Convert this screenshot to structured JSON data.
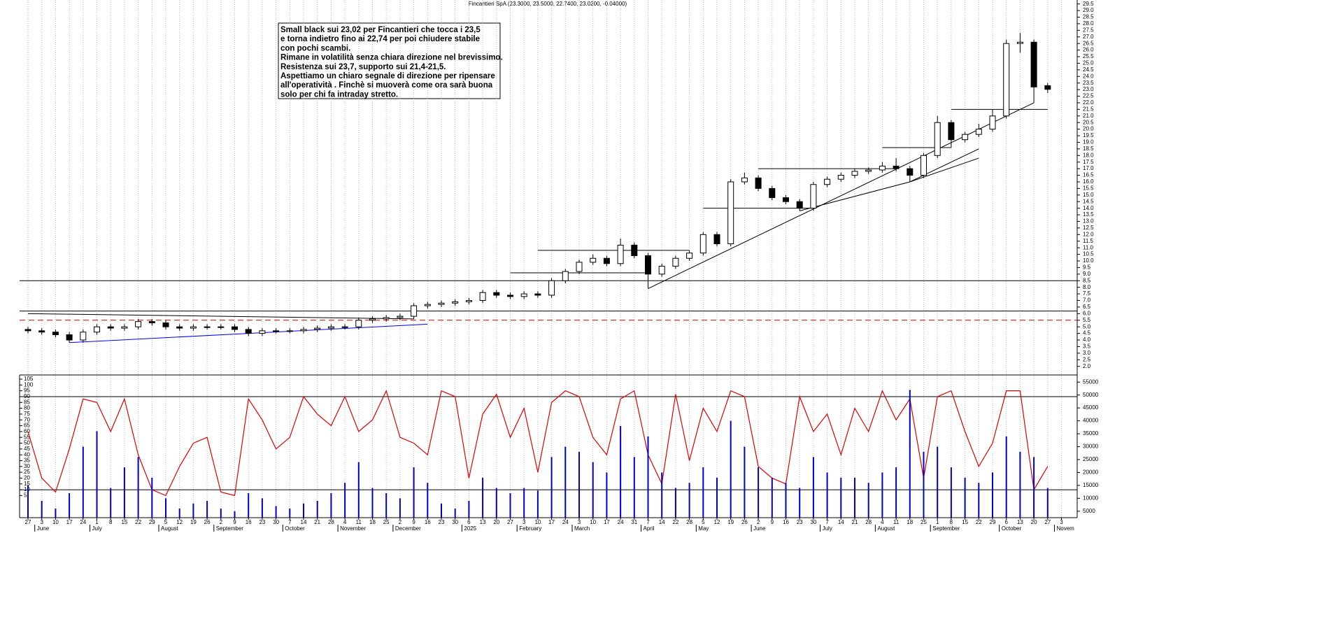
{
  "chart_data": [
    {
      "type": "candlestick",
      "title": "Fincantieri SpA (23.3000, 23.5000, 22.7400, 23.0200, -0.04000)",
      "categories": [
        "27",
        "3",
        "10",
        "17",
        "24",
        "1",
        "8",
        "15",
        "22",
        "29",
        "5",
        "12",
        "19",
        "26",
        "2",
        "9",
        "16",
        "23",
        "30",
        "7",
        "14",
        "21",
        "28",
        "4",
        "11",
        "18",
        "25",
        "2",
        "9",
        "16",
        "23",
        "30",
        "6",
        "13",
        "20",
        "27",
        "3",
        "10",
        "17",
        "24",
        "3",
        "10",
        "17",
        "24",
        "31",
        "7",
        "14",
        "22",
        "28",
        "5",
        "12",
        "19",
        "26",
        "2",
        "9",
        "16",
        "23",
        "30",
        "7",
        "14",
        "21",
        "28",
        "4",
        "11",
        "18",
        "25",
        "1",
        "8",
        "15",
        "22",
        "29",
        "6",
        "13",
        "20",
        "27",
        "3"
      ],
      "months": [
        {
          "label": "June",
          "index": 1
        },
        {
          "label": "July",
          "index": 5
        },
        {
          "label": "August",
          "index": 10
        },
        {
          "label": "September",
          "index": 14
        },
        {
          "label": "October",
          "index": 19
        },
        {
          "label": "November",
          "index": 23
        },
        {
          "label": "December",
          "index": 27
        },
        {
          "label": "2025",
          "index": 32
        },
        {
          "label": "February",
          "index": 36
        },
        {
          "label": "March",
          "index": 40
        },
        {
          "label": "April",
          "index": 45
        },
        {
          "label": "May",
          "index": 49
        },
        {
          "label": "June",
          "index": 53
        },
        {
          "label": "July",
          "index": 58
        },
        {
          "label": "August",
          "index": 62
        },
        {
          "label": "September",
          "index": 66
        },
        {
          "label": "October",
          "index": 71
        },
        {
          "label": "Novem",
          "index": 75
        }
      ],
      "open": [
        4.8,
        4.7,
        4.6,
        4.4,
        4.0,
        4.6,
        5.0,
        4.9,
        5.0,
        5.4,
        5.3,
        5.0,
        4.9,
        5.0,
        5.0,
        5.0,
        4.8,
        4.5,
        4.7,
        4.7,
        4.7,
        4.8,
        4.9,
        5.0,
        5.0,
        5.5,
        5.6,
        5.7,
        5.8,
        6.6,
        6.7,
        6.8,
        6.9,
        7.0,
        7.6,
        7.4,
        7.3,
        7.5,
        7.4,
        8.5,
        9.2,
        9.9,
        10.2,
        9.8,
        11.2,
        10.4,
        9.0,
        9.6,
        10.2,
        10.6,
        12.0,
        11.3,
        16.0,
        16.3,
        15.5,
        14.8,
        14.5,
        14.0,
        15.8,
        16.2,
        16.5,
        16.8,
        16.9,
        17.2,
        17.0,
        16.5,
        18.0,
        20.5,
        19.2,
        19.6,
        20.0,
        21.0,
        26.5,
        26.6,
        23.3,
        null
      ],
      "high": [
        5.0,
        4.9,
        4.8,
        4.6,
        4.8,
        5.2,
        5.2,
        5.2,
        5.6,
        5.6,
        5.5,
        5.2,
        5.2,
        5.2,
        5.2,
        5.2,
        5.0,
        4.9,
        4.9,
        4.9,
        5.0,
        5.1,
        5.2,
        5.2,
        5.7,
        5.8,
        5.9,
        6.0,
        6.8,
        6.9,
        7.0,
        7.1,
        7.2,
        7.8,
        7.8,
        7.6,
        7.7,
        7.7,
        8.7,
        9.4,
        10.1,
        10.5,
        10.4,
        11.7,
        11.4,
        10.6,
        9.8,
        10.4,
        10.8,
        12.2,
        12.2,
        16.2,
        16.7,
        16.5,
        15.7,
        15.0,
        14.7,
        16.0,
        16.4,
        16.7,
        17.0,
        17.1,
        17.5,
        17.8,
        17.2,
        18.2,
        21.0,
        20.7,
        19.8,
        20.4,
        21.5,
        26.8,
        27.3,
        26.8,
        23.5,
        null
      ],
      "low": [
        4.5,
        4.4,
        4.2,
        3.8,
        3.8,
        4.4,
        4.7,
        4.7,
        4.8,
        5.1,
        4.8,
        4.7,
        4.7,
        4.8,
        4.8,
        4.6,
        4.3,
        4.3,
        4.5,
        4.5,
        4.5,
        4.6,
        4.7,
        4.8,
        4.8,
        5.3,
        5.4,
        5.5,
        5.6,
        6.4,
        6.5,
        6.6,
        6.7,
        6.8,
        7.2,
        7.1,
        7.1,
        7.2,
        7.2,
        8.3,
        9.0,
        9.7,
        9.6,
        9.6,
        10.2,
        7.9,
        8.8,
        9.4,
        10.0,
        10.4,
        11.1,
        11.1,
        15.8,
        15.3,
        14.6,
        14.3,
        13.8,
        13.8,
        15.6,
        16.0,
        16.3,
        16.6,
        16.7,
        16.8,
        16.0,
        16.3,
        17.8,
        18.6,
        19.0,
        19.4,
        19.8,
        20.8,
        25.8,
        22.0,
        22.74,
        null
      ],
      "close": [
        4.7,
        4.6,
        4.4,
        4.0,
        4.6,
        5.0,
        4.9,
        5.0,
        5.4,
        5.3,
        5.0,
        4.9,
        5.0,
        5.0,
        5.0,
        4.8,
        4.5,
        4.7,
        4.7,
        4.7,
        4.8,
        4.9,
        5.0,
        5.0,
        5.5,
        5.6,
        5.7,
        5.8,
        6.6,
        6.7,
        6.8,
        6.9,
        7.0,
        7.6,
        7.4,
        7.3,
        7.5,
        7.4,
        8.5,
        9.2,
        9.9,
        10.2,
        9.8,
        11.2,
        10.4,
        9.0,
        9.6,
        10.2,
        10.6,
        12.0,
        11.3,
        16.0,
        16.3,
        15.5,
        14.8,
        14.5,
        14.0,
        15.8,
        16.2,
        16.5,
        16.8,
        16.9,
        17.2,
        17.0,
        16.5,
        18.0,
        20.5,
        19.2,
        19.6,
        20.0,
        21.0,
        26.5,
        26.6,
        23.2,
        23.02,
        null
      ],
      "ylim": [
        1.4,
        29.8
      ],
      "yticks": [
        {
          "value": 2,
          "label": "2.0"
        },
        {
          "value": 2.5,
          "label": "2.5"
        },
        {
          "value": 3,
          "label": "3.0"
        },
        {
          "value": 3.5,
          "label": "3.5"
        },
        {
          "value": 4,
          "label": "4.0"
        },
        {
          "value": 4.5,
          "label": "4.5"
        },
        {
          "value": 5,
          "label": "5.0"
        },
        {
          "value": 5.5,
          "label": "5.5"
        },
        {
          "value": 6,
          "label": "6.0"
        },
        {
          "value": 6.5,
          "label": "6.5"
        },
        {
          "value": 7,
          "label": "7.0"
        },
        {
          "value": 7.5,
          "label": "7.5"
        },
        {
          "value": 8,
          "label": "8.0"
        },
        {
          "value": 8.5,
          "label": "8.5"
        },
        {
          "value": 9,
          "label": "9.0"
        },
        {
          "value": 9.5,
          "label": "9.5"
        },
        {
          "value": 10,
          "label": "10.0"
        },
        {
          "value": 10.5,
          "label": "10.5"
        },
        {
          "value": 11,
          "label": "11.0"
        },
        {
          "value": 11.5,
          "label": "11.5"
        },
        {
          "value": 12,
          "label": "12.0"
        },
        {
          "value": 12.5,
          "label": "12.5"
        },
        {
          "value": 13,
          "label": "13.0"
        },
        {
          "value": 13.5,
          "label": "13.5"
        },
        {
          "value": 14,
          "label": "14.0"
        },
        {
          "value": 14.5,
          "label": "14.5"
        },
        {
          "value": 15,
          "label": "15.0"
        },
        {
          "value": 15.5,
          "label": "15.5"
        },
        {
          "value": 16,
          "label": "16.0"
        },
        {
          "value": 16.5,
          "label": "16.5"
        },
        {
          "value": 17,
          "label": "17.0"
        },
        {
          "value": 17.5,
          "label": "17.5"
        },
        {
          "value": 18,
          "label": "18.0"
        },
        {
          "value": 18.5,
          "label": "18.5"
        },
        {
          "value": 19,
          "label": "19.0"
        },
        {
          "value": 19.5,
          "label": "19.5"
        },
        {
          "value": 20,
          "label": "20.0"
        },
        {
          "value": 20.5,
          "label": "20.5"
        },
        {
          "value": 21,
          "label": "21.0"
        },
        {
          "value": 21.5,
          "label": "21.5"
        },
        {
          "value": 22,
          "label": "22.0"
        },
        {
          "value": 22.5,
          "label": "22.5"
        },
        {
          "value": 23,
          "label": "23.0"
        },
        {
          "value": 23.5,
          "label": "23.5"
        },
        {
          "value": 24,
          "label": "24.0"
        },
        {
          "value": 24.5,
          "label": "24.5"
        },
        {
          "value": 25,
          "label": "25.0"
        },
        {
          "value": 25.5,
          "label": "25.5"
        },
        {
          "value": 26,
          "label": "26.0"
        },
        {
          "value": 26.5,
          "label": "26.5"
        },
        {
          "value": 27,
          "label": "27.0"
        },
        {
          "value": 27.5,
          "label": "27.5"
        },
        {
          "value": 28,
          "label": "28.0"
        },
        {
          "value": 28.5,
          "label": "28.5"
        },
        {
          "value": 29,
          "label": "29.0"
        },
        {
          "value": 29.5,
          "label": "29.5"
        }
      ],
      "hlines": [
        {
          "value": 8.5,
          "color": "#000000",
          "dashed": false
        },
        {
          "value": 6.2,
          "color": "#000000",
          "dashed": false
        },
        {
          "value": 5.5,
          "color": "#e00000",
          "dashed": true
        }
      ],
      "trendlines": [
        {
          "x0": 3,
          "y0": 3.8,
          "x1": 29,
          "y1": 5.2,
          "color": "#0000ff"
        },
        {
          "x0": 0,
          "y0": 6.0,
          "x1": 28,
          "y1": 5.6,
          "color": "#000000"
        },
        {
          "x0": 45,
          "y0": 7.9,
          "x1": 73,
          "y1": 22.0,
          "color": "#000000"
        },
        {
          "x0": 56,
          "y0": 13.8,
          "x1": 64,
          "y1": 16.0,
          "color": "#000000"
        },
        {
          "x0": 64,
          "y0": 16.0,
          "x1": 69,
          "y1": 18.5,
          "color": "#000000"
        },
        {
          "x0": 64,
          "y0": 16.0,
          "x1": 69,
          "y1": 17.8,
          "color": "#000000"
        },
        {
          "x0": 35,
          "y0": 9.1,
          "x1": 45,
          "y1": 9.1,
          "color": "#000000"
        },
        {
          "x0": 37,
          "y0": 10.8,
          "x1": 48,
          "y1": 10.8,
          "color": "#000000"
        },
        {
          "x0": 49,
          "y0": 14.0,
          "x1": 57,
          "y1": 14.0,
          "color": "#000000"
        },
        {
          "x0": 53,
          "y0": 17.0,
          "x1": 63,
          "y1": 17.0,
          "color": "#000000"
        },
        {
          "x0": 62,
          "y0": 18.6,
          "x1": 67,
          "y1": 18.6,
          "color": "#000000"
        },
        {
          "x0": 67,
          "y0": 21.5,
          "x1": 74,
          "y1": 21.5,
          "color": "#000000"
        }
      ],
      "annotation": [
        "Small black sui 23,02  per Fincantieri che tocca i 23,5",
        "e torna indietro fino ai 22,74 per poi chiudere stabile",
        "con pochi scambi.",
        "Rimane in volatilità senza chiara direzione nel brevissimo.",
        "Resistenza sui 23,7, supporto sui 21,4-21,5.",
        "Aspettiamo un chiaro segnale di direzione per ripensare",
        "all'operatività . Finchè si muoverà come ora sarà buona",
        "solo per chi fa intraday stretto."
      ]
    },
    {
      "type": "oscillator",
      "series": [
        {
          "color": "#e00000",
          "values": [
            60,
            20,
            8,
            45,
            88,
            85,
            60,
            88,
            40,
            10,
            5,
            30,
            50,
            55,
            8,
            5,
            88,
            70,
            45,
            55,
            90,
            75,
            65,
            90,
            60,
            70,
            95,
            55,
            50,
            40,
            95,
            90,
            20,
            75,
            92,
            55,
            80,
            25,
            85,
            95,
            90,
            55,
            40,
            88,
            95,
            40,
            15,
            92,
            35,
            80,
            60,
            95,
            90,
            30,
            20,
            15,
            90,
            60,
            75,
            40,
            80,
            60,
            95,
            70,
            88,
            20,
            90,
            95,
            60,
            30,
            50,
            95,
            95,
            10,
            30,
            null
          ]
        },
        {
          "color": "#0000cc",
          "axis": "y2",
          "values": [
            15000,
            9000,
            6000,
            12000,
            30000,
            36000,
            14000,
            22000,
            26000,
            18000,
            10000,
            6000,
            8000,
            9000,
            6000,
            5000,
            12000,
            10000,
            7000,
            6000,
            8000,
            9000,
            12000,
            16000,
            24000,
            14000,
            12000,
            10000,
            22000,
            16000,
            8000,
            6000,
            9000,
            18000,
            14000,
            12000,
            14000,
            13000,
            26000,
            30000,
            28000,
            24000,
            20000,
            38000,
            26000,
            34000,
            20000,
            14000,
            16000,
            22000,
            18000,
            40000,
            30000,
            22000,
            18000,
            16000,
            14000,
            26000,
            20000,
            18000,
            18000,
            16000,
            20000,
            22000,
            52000,
            28000,
            30000,
            22000,
            18000,
            16000,
            20000,
            34000,
            28000,
            26000,
            14000,
            null
          ]
        }
      ],
      "ylim": [
        -14,
        108
      ],
      "yticks": [
        5,
        10,
        15,
        20,
        25,
        30,
        35,
        40,
        45,
        50,
        55,
        60,
        65,
        70,
        75,
        80,
        85,
        90,
        95,
        100,
        105
      ],
      "y2lim": [
        2500,
        57500
      ],
      "y2ticks": [
        5000,
        10000,
        15000,
        20000,
        25000,
        30000,
        35000,
        40000,
        45000,
        50000,
        55000
      ],
      "hlines": [
        90,
        10
      ]
    }
  ]
}
